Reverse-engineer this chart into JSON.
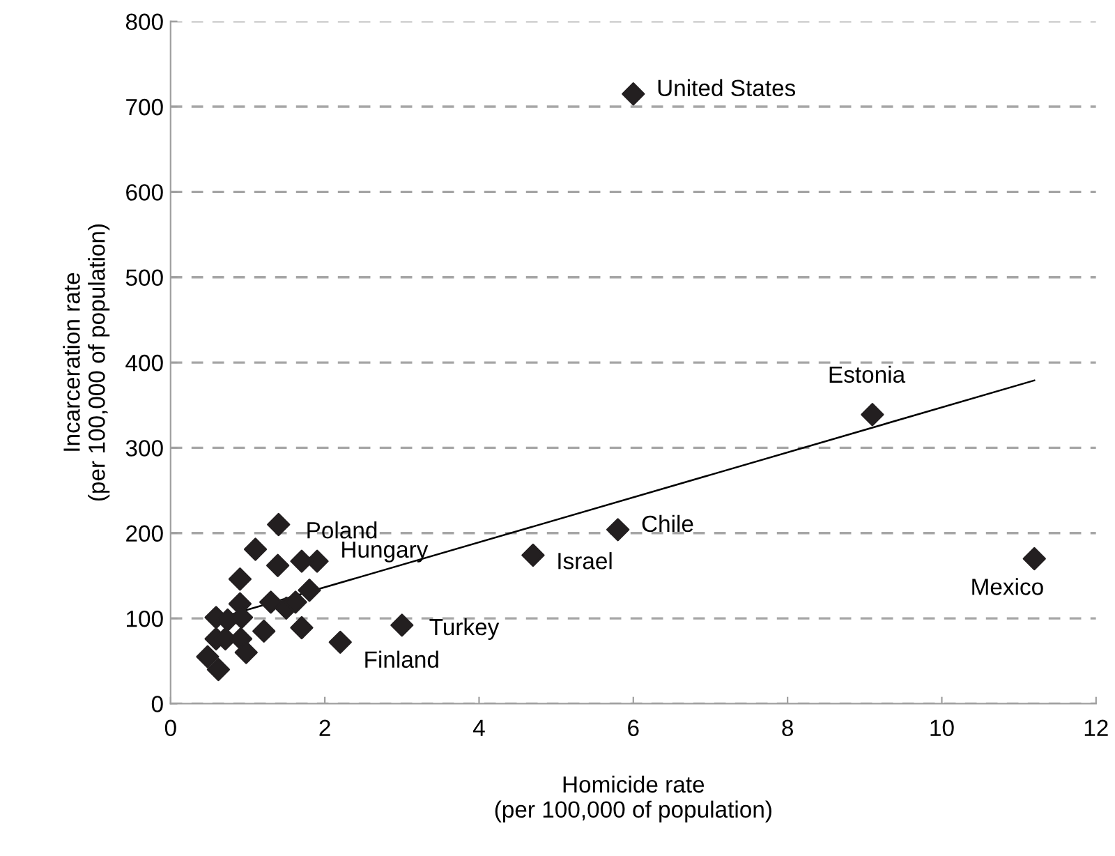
{
  "chart_data": {
    "type": "scatter",
    "xlabel": "Homicide rate\n(per 100,000 of population)",
    "ylabel": "Incarceration rate\n(per 100,000 of population)",
    "xlim": [
      0,
      12
    ],
    "ylim": [
      0,
      800
    ],
    "xticks": [
      0,
      2,
      4,
      6,
      8,
      10,
      12
    ],
    "yticks": [
      0,
      100,
      200,
      300,
      400,
      500,
      600,
      700,
      800
    ],
    "grid": "y",
    "legend": false,
    "series": [
      {
        "marker": "diamond",
        "color": "#231f20",
        "x": [
          6.0,
          9.1,
          5.8,
          4.7,
          11.2,
          1.4,
          1.9,
          2.2,
          3.0,
          1.1,
          1.39,
          1.7,
          0.9,
          1.8,
          1.3,
          1.5,
          1.62,
          0.9,
          0.59,
          0.74,
          0.92,
          1.7,
          1.21,
          0.59,
          0.71,
          0.91,
          0.98,
          0.48,
          0.62
        ],
        "values": [
          715,
          339,
          204,
          174,
          170,
          210,
          167,
          72,
          92,
          181,
          162,
          167,
          146,
          133,
          119,
          112,
          119,
          117,
          101,
          98,
          101,
          89,
          85,
          76,
          76,
          76,
          60,
          55,
          40
        ]
      },
      {
        "type": "line",
        "color": "#000000",
        "x": [
          0.5,
          11.2
        ],
        "values": [
          97,
          379
        ]
      }
    ],
    "annotations": [
      {
        "text": "United States",
        "x": 6.0,
        "y": 715
      },
      {
        "text": "Estonia",
        "x": 9.1,
        "y": 339
      },
      {
        "text": "Chile",
        "x": 5.8,
        "y": 204
      },
      {
        "text": "Israel",
        "x": 4.7,
        "y": 174
      },
      {
        "text": "Mexico",
        "x": 11.2,
        "y": 170
      },
      {
        "text": "Poland",
        "x": 1.4,
        "y": 210
      },
      {
        "text": "Hungary",
        "x": 1.9,
        "y": 167
      },
      {
        "text": "Finland",
        "x": 2.2,
        "y": 72
      },
      {
        "text": "Turkey",
        "x": 3.0,
        "y": 92
      }
    ]
  }
}
